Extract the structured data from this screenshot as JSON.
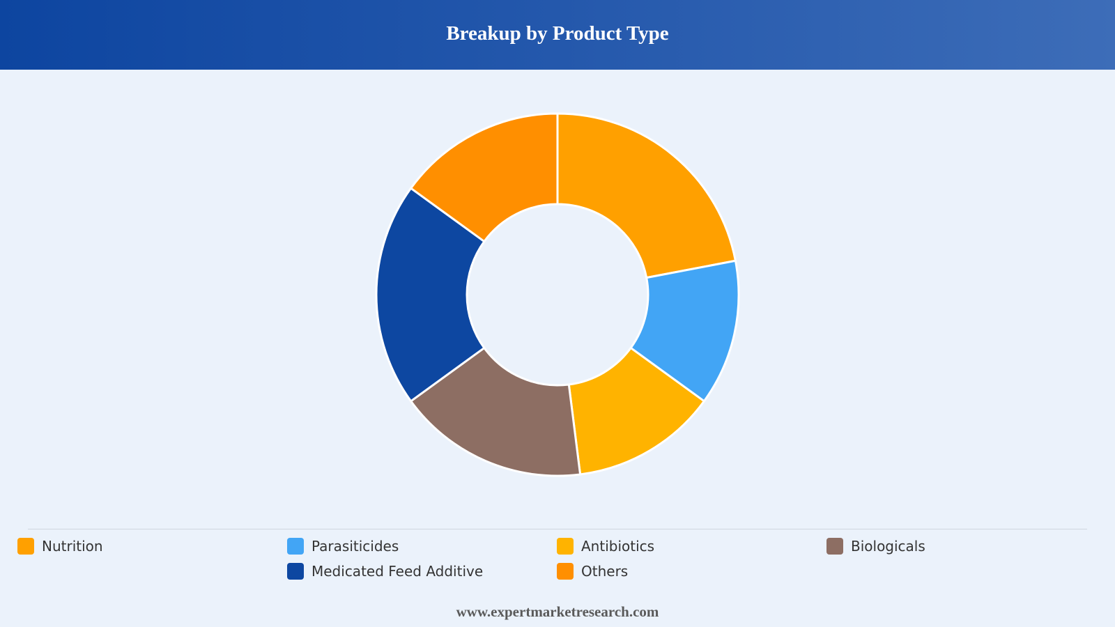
{
  "header": {
    "title": "Breakup by Product Type"
  },
  "chart_data": {
    "type": "pie",
    "donut": true,
    "title": "Breakup by Product Type",
    "categories": [
      "Nutrition",
      "Parasiticides",
      "Antibiotics",
      "Biologicals",
      "Medicated Feed Additive",
      "Others"
    ],
    "values": [
      22,
      13,
      13,
      17,
      20,
      15
    ],
    "colors": [
      "#ffa000",
      "#42a5f5",
      "#ffb300",
      "#8d6e63",
      "#0d47a1",
      "#ff8f00"
    ],
    "legend_position": "bottom"
  },
  "legend": {
    "items": [
      {
        "label": "Nutrition",
        "color": "#ffa000"
      },
      {
        "label": "Parasiticides",
        "color": "#42a5f5"
      },
      {
        "label": "Antibiotics",
        "color": "#ffb300"
      },
      {
        "label": "Biologicals",
        "color": "#8d6e63"
      },
      {
        "label": "Medicated Feed Additive",
        "color": "#0d47a1"
      },
      {
        "label": "Others",
        "color": "#ff8f00"
      }
    ]
  },
  "footer": {
    "source": "www.expertmarketresearch.com"
  }
}
